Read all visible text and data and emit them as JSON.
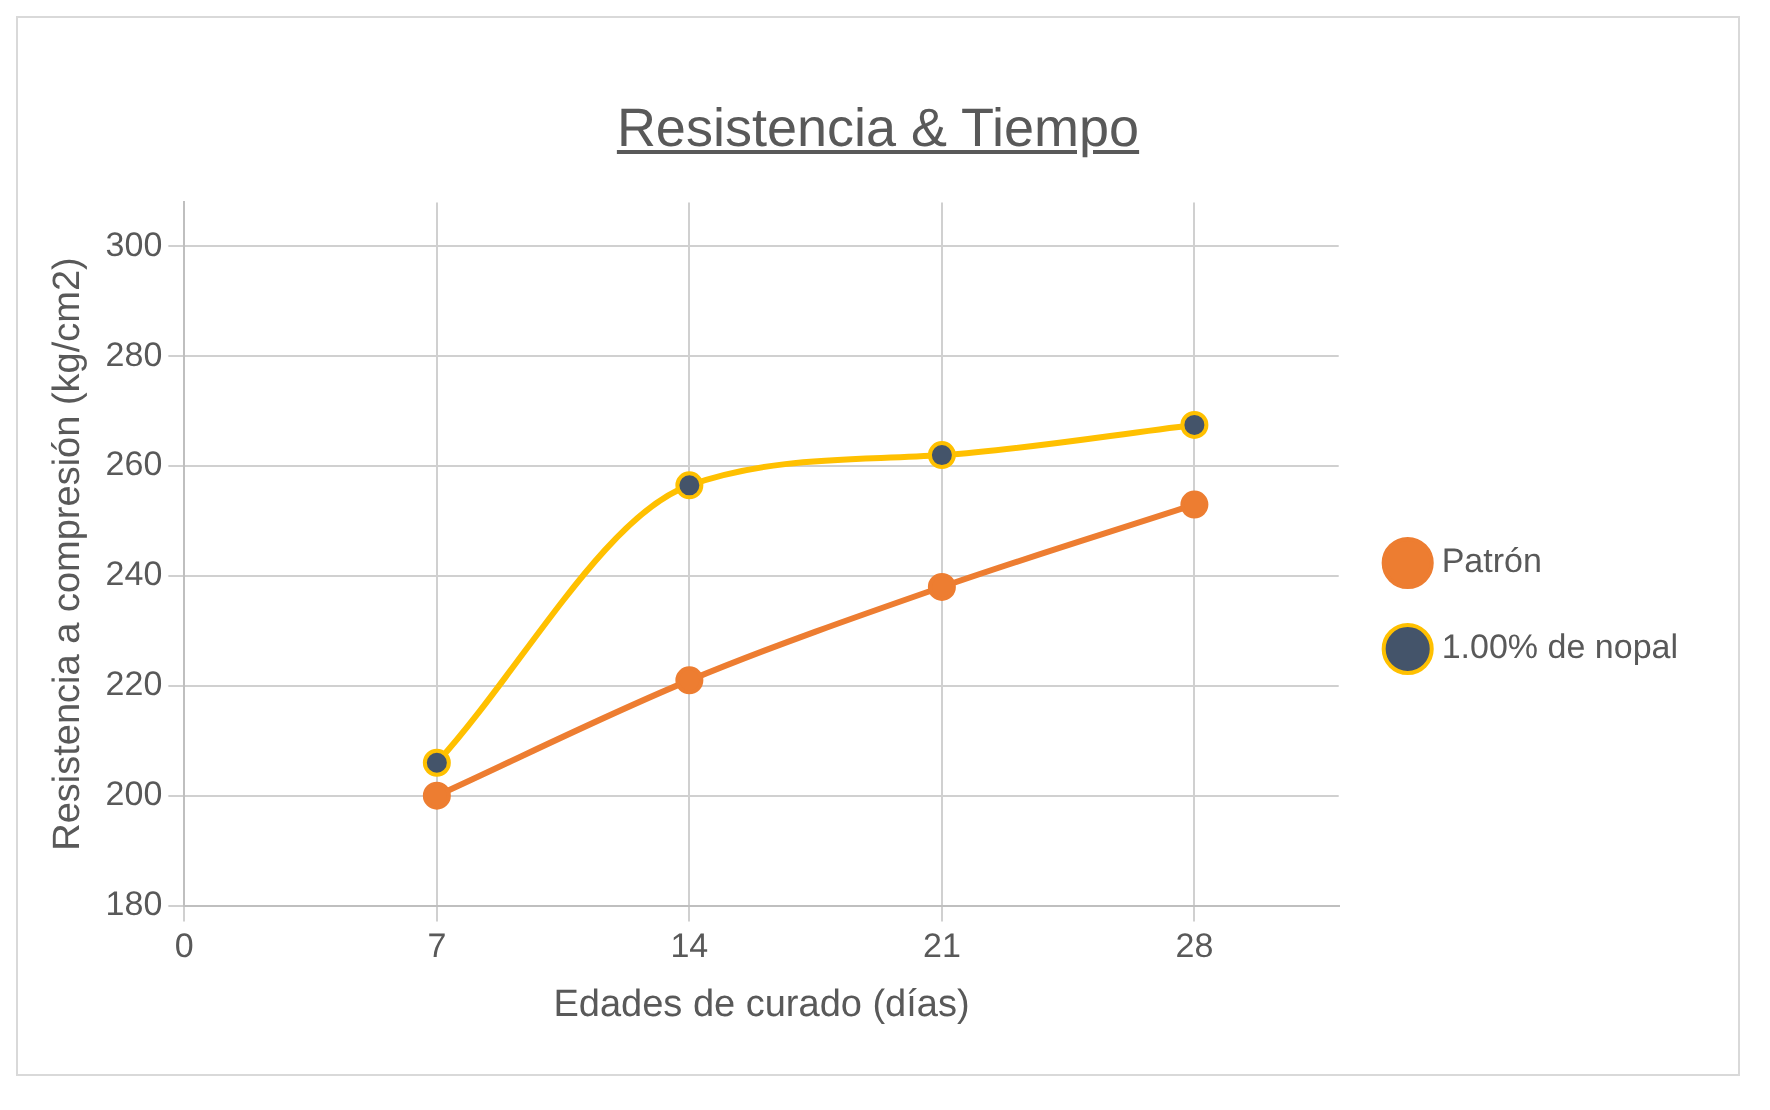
{
  "chart_data": {
    "type": "line",
    "title": "Resistencia & Tiempo",
    "xlabel": "Edades de curado (días)",
    "ylabel": "Resistencia a compresión (kg/cm2)",
    "x": [
      7,
      14,
      21,
      28
    ],
    "series": [
      {
        "name": "Patrón",
        "color": "#ed7d31",
        "values": [
          200,
          221,
          238,
          253
        ]
      },
      {
        "name": "1.00% de nopal",
        "color": "#ffc000",
        "values": [
          206,
          256.5,
          262,
          267.5
        ]
      }
    ],
    "xlim": [
      0,
      32
    ],
    "xticks": [
      0,
      7,
      14,
      21,
      28
    ],
    "ylim": [
      180,
      308
    ],
    "yticks": [
      180,
      200,
      220,
      240,
      260,
      280,
      300
    ],
    "grid": true,
    "legend": "right",
    "marker": "circle"
  }
}
